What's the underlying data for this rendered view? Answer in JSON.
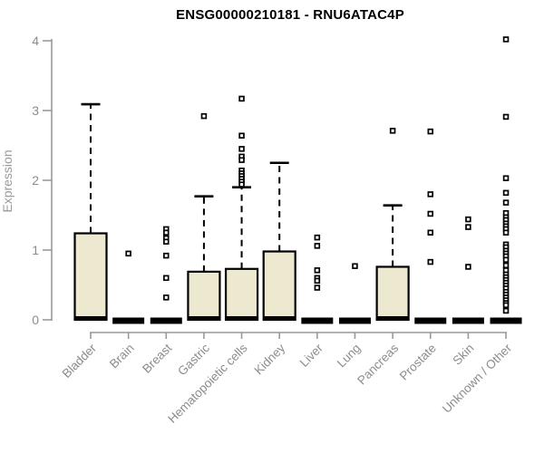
{
  "chart_data": {
    "type": "box",
    "title": "ENSG00000210181 - RNU6ATAC4P",
    "xlabel": "",
    "ylabel": "Expression",
    "ylim": [
      0,
      4
    ],
    "yticks": [
      0,
      1,
      2,
      3,
      4
    ],
    "grid": false,
    "legend": null,
    "colors": {
      "box_fill": "#ede8d0",
      "box_stroke": "#000000",
      "median": "#000000",
      "whisker": "#000000",
      "outlier_stroke": "#000000",
      "outlier_fill": "#ffffff",
      "axis_line": "#999999",
      "tick_label": "#8c8c8c",
      "title": "#000000"
    },
    "categories": [
      "Bladder",
      "Brain",
      "Breast",
      "Gastric",
      "Hematopoietic cells",
      "Kidney",
      "Liver",
      "Lung",
      "Pancreas",
      "Prostate",
      "Skin",
      "Unknown / Other"
    ],
    "boxes": [
      {
        "label": "Bladder",
        "q1": 0,
        "median": 0.02,
        "q3": 1.24,
        "whisker_low": 0,
        "whisker_high": 3.09,
        "outliers": []
      },
      {
        "label": "Brain",
        "q1": 0,
        "median": 0,
        "q3": 0,
        "whisker_low": 0,
        "whisker_high": 0,
        "outliers": [
          0.95
        ]
      },
      {
        "label": "Breast",
        "q1": 0,
        "median": 0,
        "q3": 0,
        "whisker_low": 0,
        "whisker_high": 0,
        "outliers": [
          1.3,
          1.25,
          1.17,
          1.12,
          0.92,
          0.6,
          0.32
        ]
      },
      {
        "label": "Gastric",
        "q1": 0,
        "median": 0.02,
        "q3": 0.69,
        "whisker_low": 0,
        "whisker_high": 1.77,
        "outliers": [
          2.92
        ]
      },
      {
        "label": "Hematopoietic cells",
        "q1": 0,
        "median": 0.02,
        "q3": 0.73,
        "whisker_low": 0,
        "whisker_high": 1.9,
        "outliers": [
          3.17,
          2.64,
          2.45,
          2.34,
          2.29,
          2.14,
          2.1,
          2.06,
          2.02,
          1.98,
          1.94
        ]
      },
      {
        "label": "Kidney",
        "q1": 0,
        "median": 0.02,
        "q3": 0.98,
        "whisker_low": 0,
        "whisker_high": 2.25,
        "outliers": []
      },
      {
        "label": "Liver",
        "q1": 0,
        "median": 0,
        "q3": 0,
        "whisker_low": 0,
        "whisker_high": 0,
        "outliers": [
          1.18,
          1.06,
          0.71,
          0.6,
          0.56,
          0.46
        ]
      },
      {
        "label": "Lung",
        "q1": 0,
        "median": 0,
        "q3": 0,
        "whisker_low": 0,
        "whisker_high": 0,
        "outliers": [
          0.77
        ]
      },
      {
        "label": "Pancreas",
        "q1": 0,
        "median": 0.02,
        "q3": 0.76,
        "whisker_low": 0,
        "whisker_high": 1.64,
        "outliers": [
          2.71
        ]
      },
      {
        "label": "Prostate",
        "q1": 0,
        "median": 0,
        "q3": 0,
        "whisker_low": 0,
        "whisker_high": 0,
        "outliers": [
          2.7,
          1.8,
          1.52,
          1.25,
          0.83
        ]
      },
      {
        "label": "Skin",
        "q1": 0,
        "median": 0,
        "q3": 0,
        "whisker_low": 0,
        "whisker_high": 0,
        "outliers": [
          1.44,
          1.33,
          0.76
        ]
      },
      {
        "label": "Unknown / Other",
        "q1": 0,
        "median": 0,
        "q3": 0,
        "whisker_low": 0,
        "whisker_high": 0,
        "outliers": [
          4.02,
          2.91,
          2.03,
          1.82,
          1.68,
          1.53,
          1.47,
          1.43,
          1.38,
          1.34,
          1.3,
          1.25,
          1.08,
          1.04,
          0.99,
          0.95,
          0.91,
          0.86,
          0.78,
          0.71,
          0.65,
          0.61,
          0.57,
          0.53,
          0.49,
          0.45,
          0.4,
          0.36,
          0.32,
          0.28,
          0.24,
          0.21,
          0.13
        ]
      }
    ]
  }
}
